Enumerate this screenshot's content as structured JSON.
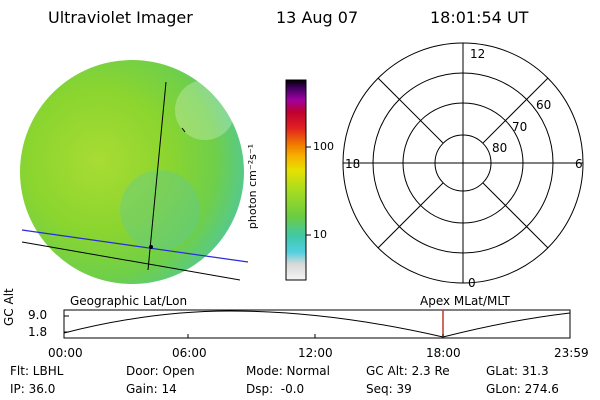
{
  "header": {
    "title": "Ultraviolet Imager",
    "date": "13 Aug 07",
    "time": "18:01:54 UT"
  },
  "colorbar": {
    "unit_label": "photon cm⁻²s⁻¹",
    "ticks": [
      "100",
      "10"
    ]
  },
  "polar": {
    "mlt_labels": {
      "top": "12",
      "left": "18",
      "right": "6",
      "bottom": "0"
    },
    "lat_labels": [
      "60",
      "70",
      "80"
    ]
  },
  "timeline": {
    "left_caption": "Geographic Lat/Lon",
    "right_caption": "Apex MLat/MLT",
    "axis_title": "GC Alt",
    "y_ticks": [
      "9.0",
      "1.8"
    ],
    "x_ticks": [
      "00:00",
      "06:00",
      "12:00",
      "18:00",
      "23:59"
    ]
  },
  "status": {
    "row1": [
      "Flt: LBHL",
      "Door: Open",
      "Mode: Normal",
      "GC Alt: 2.3 Re",
      "GLat: 31.3"
    ],
    "row2": [
      "IP: 36.0",
      "Gain: 14",
      "Dsp:  -0.0",
      "Seq: 39",
      "GLon: 274.6"
    ]
  },
  "colors": {
    "disk_green": "#86d62c",
    "grid_blue": "#2a2ad8",
    "marker_red": "#c0392b"
  }
}
